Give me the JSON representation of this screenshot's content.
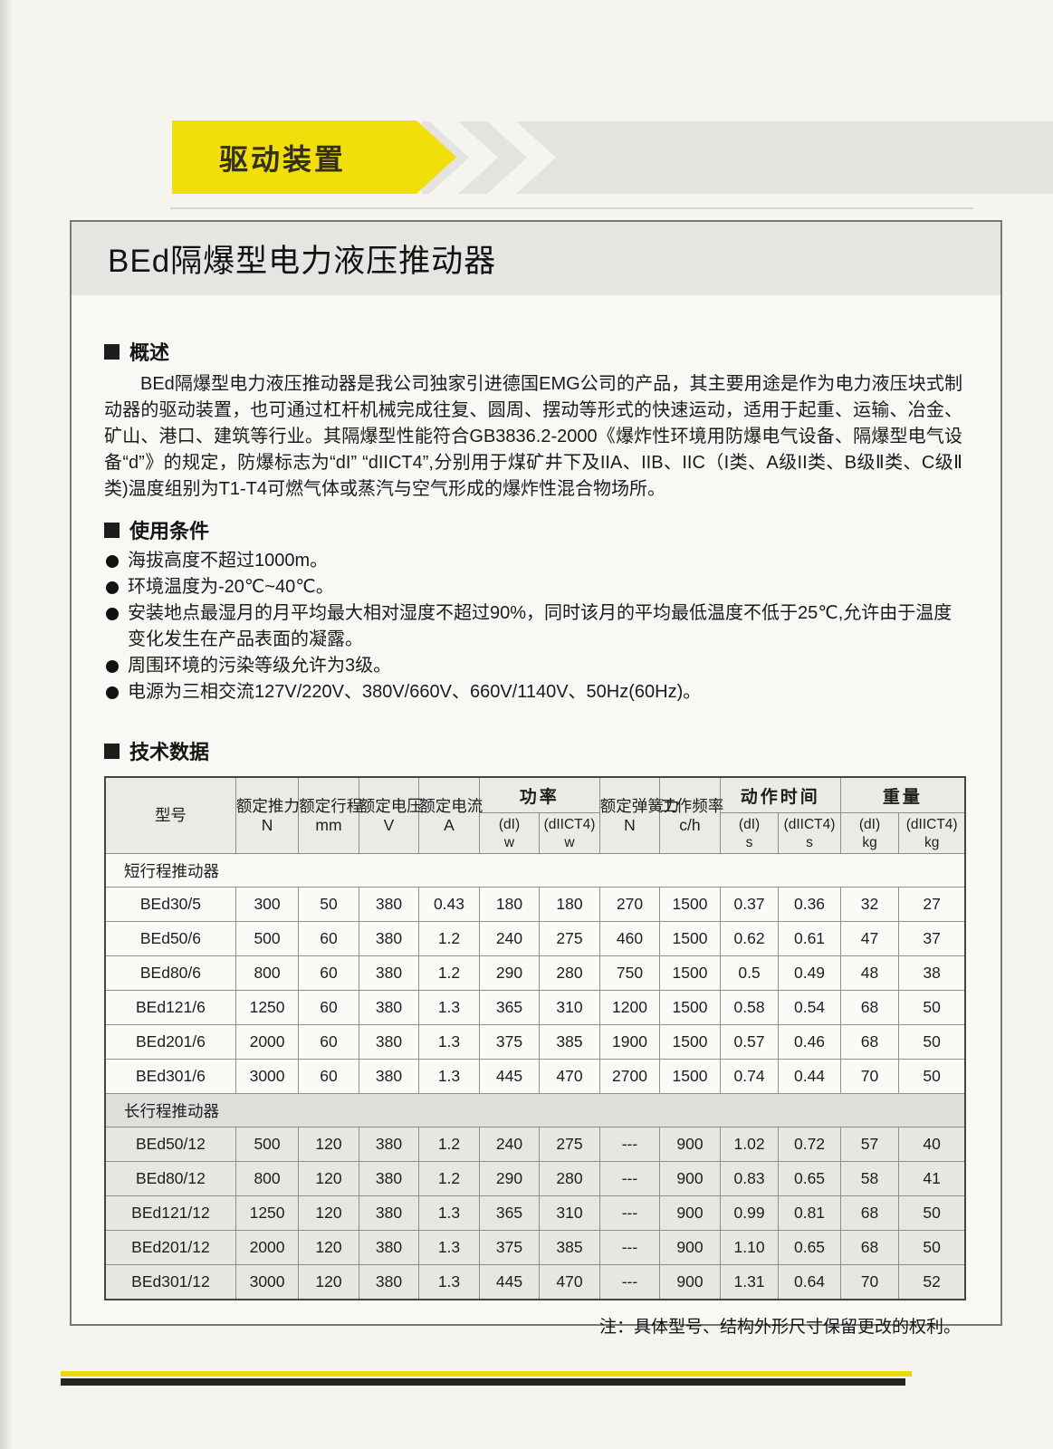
{
  "page": {
    "badge_label": "驱动装置",
    "doc_title": "BEd隔爆型电力液压推动器",
    "note": "注：具体型号、结构外形尺寸保留更改的权利。"
  },
  "colors": {
    "badge_yellow": "#f2de0a",
    "band_gray": "#e4e3e0",
    "banner_gray": "#e6e5e1",
    "table_header_gray": "#ebeae5",
    "section_shade_gray": "#e7e6e1",
    "stripe_yellow": "#eed80c",
    "stripe_black": "#26251f"
  },
  "overview": {
    "heading": "概述",
    "paragraph": "BEd隔爆型电力液压推动器是我公司独家引进德国EMG公司的产品，其主要用途是作为电力液压块式制动器的驱动装置，也可通过杠杆机械完成往复、圆周、摆动等形式的快速运动，适用于起重、运输、冶金、矿山、港口、建筑等行业。其隔爆型性能符合GB3836.2-2000《爆炸性环境用防爆电气设备、隔爆型电气设备“d”》的规定，防爆标志为“dI” “dIICT4”,分别用于煤矿井下及IIA、IIB、IIC（I类、A级II类、B级Ⅱ类、C级Ⅱ类)温度组别为T1-T4可燃气体或蒸汽与空气形成的爆炸性混合物场所。"
  },
  "conditions": {
    "heading": "使用条件",
    "items": [
      "海拔高度不超过1000m。",
      "环境温度为-20℃~40℃。",
      "安装地点最湿月的月平均最大相对湿度不超过90%，同时该月的平均最低温度不低于25℃,允许由于温度变化发生在产品表面的凝露。",
      "周围环境的污染等级允许为3级。",
      "电源为三相交流127V/220V、380V/660V、660V/1140V、50Hz(60Hz)。"
    ]
  },
  "tech": {
    "heading": "技术数据",
    "table": {
      "header_row1": [
        {
          "label": "型号",
          "sub": "",
          "rowspan": 2
        },
        {
          "label": "额定推力",
          "sub": "N",
          "rowspan": 2
        },
        {
          "label": "额定行程",
          "sub": "mm",
          "rowspan": 2
        },
        {
          "label": "额定电压",
          "sub": "V",
          "rowspan": 2
        },
        {
          "label": "额定电流",
          "sub": "A",
          "rowspan": 2
        },
        {
          "label": "功率",
          "colspan": 2
        },
        {
          "label": "额定弹簧力",
          "sub": "N",
          "rowspan": 2
        },
        {
          "label": "工作频率",
          "sub": "c/h",
          "rowspan": 2
        },
        {
          "label": "动作时间",
          "colspan": 2
        },
        {
          "label": "重量",
          "colspan": 2
        }
      ],
      "header_row2": [
        {
          "label": "(dI)",
          "sub": "w"
        },
        {
          "label": "(dIICT4)",
          "sub": "w"
        },
        {
          "label": "(dI)",
          "sub": "s"
        },
        {
          "label": "(dIICT4)",
          "sub": "s"
        },
        {
          "label": "(dI)",
          "sub": "kg"
        },
        {
          "label": "(dIICT4)",
          "sub": "kg"
        }
      ],
      "sections": [
        {
          "label": "短行程推动器",
          "shaded": false,
          "rows": [
            [
              "BEd30/5",
              "300",
              "50",
              "380",
              "0.43",
              "180",
              "180",
              "270",
              "1500",
              "0.37",
              "0.36",
              "32",
              "27"
            ],
            [
              "BEd50/6",
              "500",
              "60",
              "380",
              "1.2",
              "240",
              "275",
              "460",
              "1500",
              "0.62",
              "0.61",
              "47",
              "37"
            ],
            [
              "BEd80/6",
              "800",
              "60",
              "380",
              "1.2",
              "290",
              "280",
              "750",
              "1500",
              "0.5",
              "0.49",
              "48",
              "38"
            ],
            [
              "BEd121/6",
              "1250",
              "60",
              "380",
              "1.3",
              "365",
              "310",
              "1200",
              "1500",
              "0.58",
              "0.54",
              "68",
              "50"
            ],
            [
              "BEd201/6",
              "2000",
              "60",
              "380",
              "1.3",
              "375",
              "385",
              "1900",
              "1500",
              "0.57",
              "0.46",
              "68",
              "50"
            ],
            [
              "BEd301/6",
              "3000",
              "60",
              "380",
              "1.3",
              "445",
              "470",
              "2700",
              "1500",
              "0.74",
              "0.44",
              "70",
              "50"
            ]
          ]
        },
        {
          "label": "长行程推动器",
          "shaded": true,
          "rows": [
            [
              "BEd50/12",
              "500",
              "120",
              "380",
              "1.2",
              "240",
              "275",
              "---",
              "900",
              "1.02",
              "0.72",
              "57",
              "40"
            ],
            [
              "BEd80/12",
              "800",
              "120",
              "380",
              "1.2",
              "290",
              "280",
              "---",
              "900",
              "0.83",
              "0.65",
              "58",
              "41"
            ],
            [
              "BEd121/12",
              "1250",
              "120",
              "380",
              "1.3",
              "365",
              "310",
              "---",
              "900",
              "0.99",
              "0.81",
              "68",
              "50"
            ],
            [
              "BEd201/12",
              "2000",
              "120",
              "380",
              "1.3",
              "375",
              "385",
              "---",
              "900",
              "1.10",
              "0.65",
              "68",
              "50"
            ],
            [
              "BEd301/12",
              "3000",
              "120",
              "380",
              "1.3",
              "445",
              "470",
              "---",
              "900",
              "1.31",
              "0.64",
              "70",
              "52"
            ]
          ]
        }
      ]
    }
  }
}
